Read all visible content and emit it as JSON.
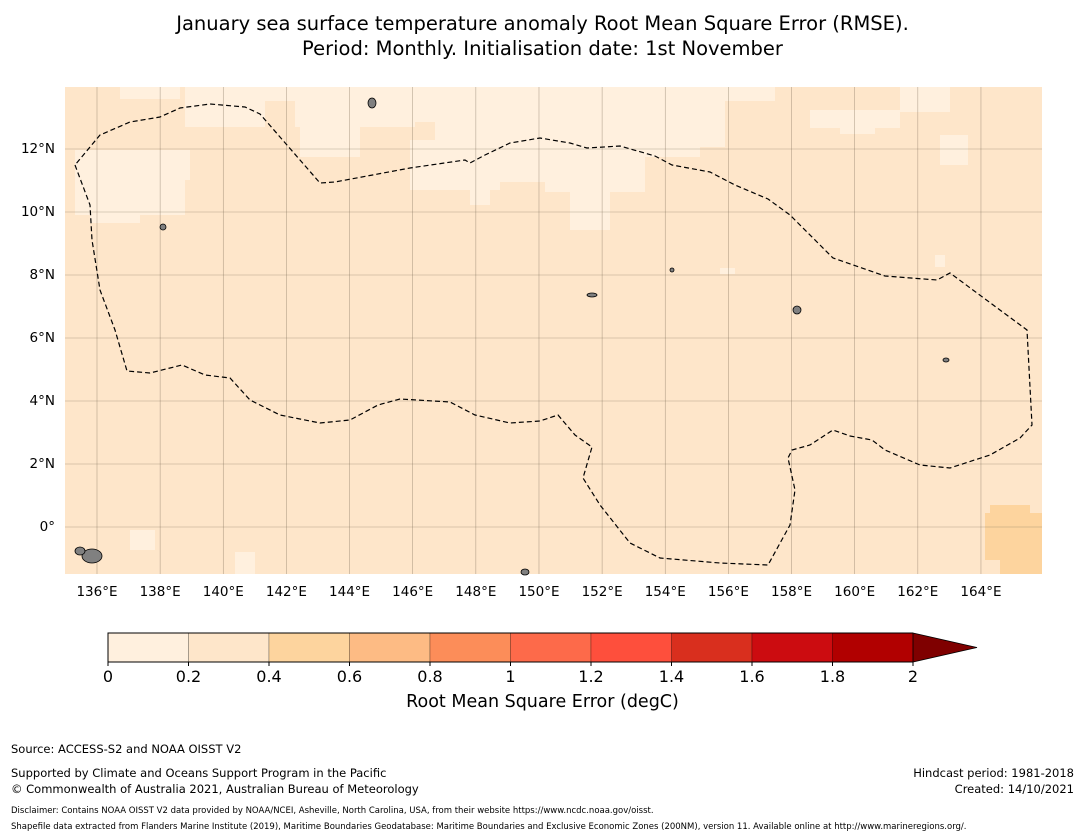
{
  "title_line1": "January sea surface temperature anomaly Root Mean Square Error (RMSE).",
  "title_line2": "Period: Monthly. Initialisation date: 1st November",
  "x_ticks": [
    "136°E",
    "138°E",
    "140°E",
    "142°E",
    "144°E",
    "146°E",
    "148°E",
    "150°E",
    "152°E",
    "154°E",
    "156°E",
    "158°E",
    "160°E",
    "162°E",
    "164°E"
  ],
  "y_ticks": [
    "12°N",
    "10°N",
    "8°N",
    "6°N",
    "4°N",
    "2°N",
    "0°"
  ],
  "colorbar": {
    "label": "Root Mean Square Error (degC)",
    "ticks": [
      "0",
      "0.2",
      "0.4",
      "0.6",
      "0.8",
      "1",
      "1.2",
      "1.4",
      "1.6",
      "1.8",
      "2"
    ],
    "colors": [
      "#fff0de",
      "#fee6ca",
      "#fdd49e",
      "#fdbb84",
      "#fc8d59",
      "#fd6a4a",
      "#fe4f3c",
      "#d92f1e",
      "#cc0c10",
      "#b10000"
    ],
    "extend_color": "#7f0000"
  },
  "map_colors": {
    "bin_0_02": "#fff0de",
    "bin_02_04": "#fee6ca",
    "bin_04_06": "#fdd49e",
    "land": "#808080"
  },
  "footer": {
    "source": "Source: ACCESS-S2 and NOAA OISST V2",
    "supported": "Supported by Climate and Oceans Support Program in the Pacific",
    "copyright": "© Commonwealth of Australia 2021, Australian Bureau of Meteorology",
    "hindcast": "Hindcast period: 1981-2018",
    "created": "Created: 14/10/2021",
    "disclaimer": "Disclaimer: Contains NOAA OISST V2 data provided by NOAA/NCEI, Asheville, North Carolina, USA, from their website https://www.ncdc.noaa.gov/oisst.",
    "shapefile": "Shapefile data extracted from Flanders Marine Institute (2019), Maritime Boundaries Geodatabase: Maritime Boundaries and Exclusive Economic Zones (200NM), version 11. Available online at http://www.marineregions.org/."
  }
}
